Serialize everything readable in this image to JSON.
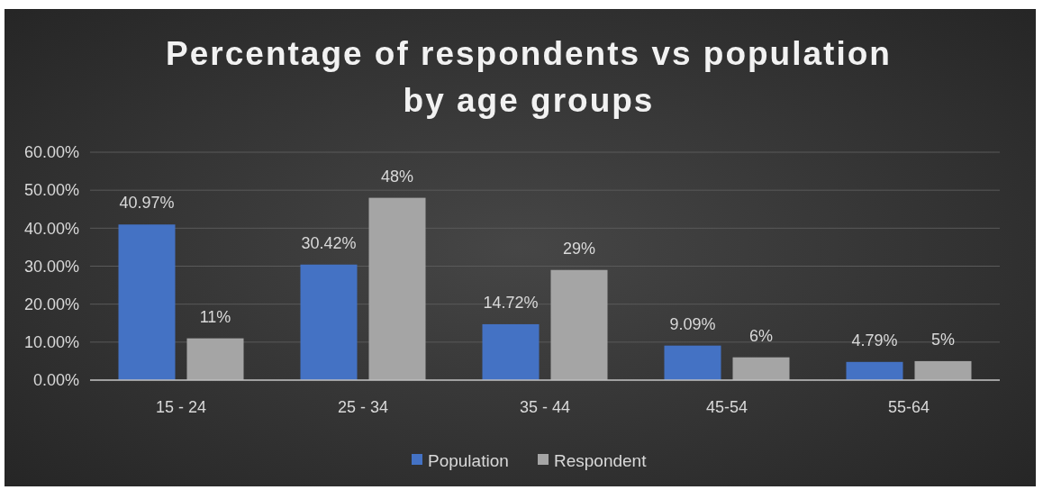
{
  "chart_data": {
    "type": "bar",
    "title": "Percentage of respondents vs population by age groups",
    "categories": [
      "15 - 24",
      "25 - 34",
      "35 - 44",
      "45-54",
      "55-64"
    ],
    "series": [
      {
        "name": "Population",
        "color": "#4472c4",
        "values": [
          40.97,
          30.42,
          14.72,
          9.09,
          4.79
        ],
        "value_labels": [
          "40.97%",
          "30.42%",
          "14.72%",
          "9.09%",
          "4.79%"
        ]
      },
      {
        "name": "Respondent",
        "color": "#a5a5a5",
        "values": [
          11,
          48,
          29,
          6,
          5
        ],
        "value_labels": [
          "11%",
          "48%",
          "29%",
          "6%",
          "5%"
        ]
      }
    ],
    "ylim": [
      0,
      60
    ],
    "yticks": [
      {
        "value": 0,
        "label": "0.00%"
      },
      {
        "value": 10,
        "label": "10.00%"
      },
      {
        "value": 20,
        "label": "20.00%"
      },
      {
        "value": 30,
        "label": "30.00%"
      },
      {
        "value": 40,
        "label": "40.00%"
      },
      {
        "value": 50,
        "label": "50.00%"
      },
      {
        "value": 60,
        "label": "60.00%"
      }
    ],
    "grid": "y",
    "legend": "bottom"
  }
}
